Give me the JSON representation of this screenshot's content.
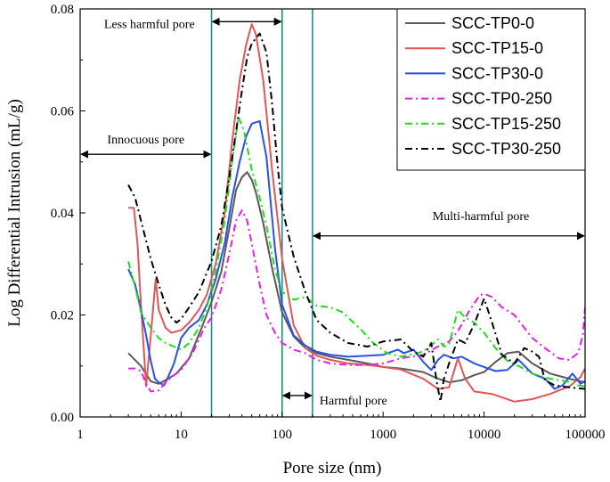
{
  "chart_data": {
    "type": "line",
    "xscale": "log",
    "xlabel": "Pore size (nm)",
    "ylabel": "Log Differential Intrusion (mL/g)",
    "xlim": [
      1,
      100000
    ],
    "ylim": [
      0,
      0.08
    ],
    "x_ticks": [
      1,
      10,
      100,
      1000,
      10000,
      100000
    ],
    "x_tick_labels": [
      "1",
      "10",
      "100",
      "1000",
      "10000",
      "100000"
    ],
    "y_ticks": [
      0,
      0.02,
      0.04,
      0.06,
      0.08
    ],
    "y_tick_labels": [
      "0.00",
      "0.02",
      "0.04",
      "0.06",
      "0.08"
    ],
    "boundaries": [
      20,
      100,
      200
    ],
    "annotations": [
      {
        "id": "innocuous",
        "text": "Innocuous pore",
        "from": 1,
        "to": 20,
        "y": 0.0515
      },
      {
        "id": "less-harmful",
        "text": "Less harmful pore",
        "from": 20,
        "to": 100,
        "y": 0.0775
      },
      {
        "id": "harmful",
        "text": "Harmful pore",
        "from": 100,
        "to": 200,
        "y": 0.0042
      },
      {
        "id": "multi-harmful",
        "text": "Multi-harmful pore",
        "from": 200,
        "to": 100000,
        "y": 0.0355
      }
    ],
    "series": [
      {
        "name": "SCC-TP0-0",
        "color": "#595959",
        "dash": "",
        "points": [
          [
            3,
            0.0125
          ],
          [
            4,
            0.01
          ],
          [
            5,
            0.007
          ],
          [
            6,
            0.0065
          ],
          [
            7,
            0.0072
          ],
          [
            9,
            0.0085
          ],
          [
            12,
            0.0115
          ],
          [
            16,
            0.0175
          ],
          [
            20,
            0.0225
          ],
          [
            25,
            0.0285
          ],
          [
            30,
            0.037
          ],
          [
            35,
            0.0445
          ],
          [
            40,
            0.047
          ],
          [
            45,
            0.048
          ],
          [
            50,
            0.0465
          ],
          [
            55,
            0.044
          ],
          [
            65,
            0.038
          ],
          [
            80,
            0.029
          ],
          [
            100,
            0.0205
          ],
          [
            130,
            0.0158
          ],
          [
            170,
            0.0135
          ],
          [
            220,
            0.0125
          ],
          [
            300,
            0.0118
          ],
          [
            450,
            0.0112
          ],
          [
            700,
            0.0105
          ],
          [
            1000,
            0.0098
          ],
          [
            1500,
            0.0095
          ],
          [
            2500,
            0.0088
          ],
          [
            3500,
            0.0075
          ],
          [
            4500,
            0.0068
          ],
          [
            6000,
            0.0072
          ],
          [
            8000,
            0.0082
          ],
          [
            10000,
            0.0088
          ],
          [
            13000,
            0.0108
          ],
          [
            17000,
            0.0125
          ],
          [
            22000,
            0.0128
          ],
          [
            30000,
            0.0105
          ],
          [
            45000,
            0.0085
          ],
          [
            70000,
            0.0075
          ],
          [
            100000,
            0.0068
          ]
        ]
      },
      {
        "name": "SCC-TP15-0",
        "color": "#e15759",
        "dash": "",
        "points": [
          [
            3,
            0.041
          ],
          [
            3.4,
            0.041
          ],
          [
            3.7,
            0.034
          ],
          [
            4,
            0.022
          ],
          [
            4.5,
            0.006
          ],
          [
            5,
            0.016
          ],
          [
            5.6,
            0.027
          ],
          [
            6,
            0.021
          ],
          [
            7,
            0.0175
          ],
          [
            8,
            0.0165
          ],
          [
            10,
            0.017
          ],
          [
            12,
            0.0185
          ],
          [
            15,
            0.021
          ],
          [
            18,
            0.024
          ],
          [
            22,
            0.03
          ],
          [
            27,
            0.04
          ],
          [
            32,
            0.054
          ],
          [
            38,
            0.066
          ],
          [
            44,
            0.073
          ],
          [
            50,
            0.077
          ],
          [
            55,
            0.075
          ],
          [
            65,
            0.066
          ],
          [
            80,
            0.048
          ],
          [
            100,
            0.031
          ],
          [
            130,
            0.018
          ],
          [
            170,
            0.0135
          ],
          [
            220,
            0.012
          ],
          [
            300,
            0.0112
          ],
          [
            450,
            0.0105
          ],
          [
            700,
            0.0102
          ],
          [
            1000,
            0.0098
          ],
          [
            1500,
            0.0093
          ],
          [
            2500,
            0.0075
          ],
          [
            3500,
            0.0055
          ],
          [
            4500,
            0.0058
          ],
          [
            5500,
            0.0115
          ],
          [
            6500,
            0.0075
          ],
          [
            8000,
            0.005
          ],
          [
            12000,
            0.0045
          ],
          [
            20000,
            0.003
          ],
          [
            30000,
            0.0035
          ],
          [
            45000,
            0.0045
          ],
          [
            70000,
            0.006
          ],
          [
            90000,
            0.0078
          ],
          [
            100000,
            0.0095
          ]
        ]
      },
      {
        "name": "SCC-TP30-0",
        "color": "#2b50e5",
        "dash": "",
        "points": [
          [
            3,
            0.029
          ],
          [
            3.5,
            0.026
          ],
          [
            4,
            0.021
          ],
          [
            4.5,
            0.016
          ],
          [
            5,
            0.011
          ],
          [
            5.5,
            0.0075
          ],
          [
            6,
            0.0068
          ],
          [
            6.8,
            0.0062
          ],
          [
            7.5,
            0.008
          ],
          [
            8.5,
            0.0105
          ],
          [
            10,
            0.0155
          ],
          [
            12,
            0.0175
          ],
          [
            15,
            0.019
          ],
          [
            18,
            0.022
          ],
          [
            22,
            0.027
          ],
          [
            27,
            0.034
          ],
          [
            32,
            0.043
          ],
          [
            38,
            0.05
          ],
          [
            44,
            0.055
          ],
          [
            50,
            0.0575
          ],
          [
            60,
            0.058
          ],
          [
            70,
            0.051
          ],
          [
            85,
            0.033
          ],
          [
            100,
            0.022
          ],
          [
            130,
            0.016
          ],
          [
            170,
            0.014
          ],
          [
            220,
            0.0128
          ],
          [
            300,
            0.0122
          ],
          [
            450,
            0.0118
          ],
          [
            700,
            0.012
          ],
          [
            1000,
            0.0122
          ],
          [
            1400,
            0.0132
          ],
          [
            1600,
            0.0125
          ],
          [
            2000,
            0.0132
          ],
          [
            2500,
            0.0108
          ],
          [
            3000,
            0.0092
          ],
          [
            3500,
            0.0112
          ],
          [
            4000,
            0.0122
          ],
          [
            5000,
            0.0115
          ],
          [
            6000,
            0.0118
          ],
          [
            8000,
            0.0105
          ],
          [
            10000,
            0.0098
          ],
          [
            13000,
            0.009
          ],
          [
            17000,
            0.0092
          ],
          [
            22000,
            0.0112
          ],
          [
            30000,
            0.0085
          ],
          [
            40000,
            0.0075
          ],
          [
            50000,
            0.0055
          ],
          [
            60000,
            0.0062
          ],
          [
            75000,
            0.0085
          ],
          [
            90000,
            0.0065
          ],
          [
            100000,
            0.007
          ]
        ]
      },
      {
        "name": "SCC-TP0-250",
        "color": "#e61fe6",
        "dash": "8 4 2 4",
        "points": [
          [
            3,
            0.0095
          ],
          [
            3.5,
            0.0095
          ],
          [
            4,
            0.009
          ],
          [
            4.5,
            0.0065
          ],
          [
            5,
            0.005
          ],
          [
            6,
            0.0052
          ],
          [
            7,
            0.0068
          ],
          [
            8.5,
            0.0082
          ],
          [
            10,
            0.0092
          ],
          [
            13,
            0.0125
          ],
          [
            17,
            0.0175
          ],
          [
            20,
            0.0195
          ],
          [
            25,
            0.025
          ],
          [
            30,
            0.032
          ],
          [
            35,
            0.0385
          ],
          [
            40,
            0.0405
          ],
          [
            45,
            0.0385
          ],
          [
            50,
            0.034
          ],
          [
            60,
            0.026
          ],
          [
            70,
            0.02
          ],
          [
            85,
            0.0165
          ],
          [
            100,
            0.0145
          ],
          [
            130,
            0.0132
          ],
          [
            170,
            0.0125
          ],
          [
            220,
            0.0112
          ],
          [
            300,
            0.0105
          ],
          [
            450,
            0.0102
          ],
          [
            700,
            0.0102
          ],
          [
            1000,
            0.0105
          ],
          [
            1500,
            0.0115
          ],
          [
            2500,
            0.0122
          ],
          [
            3500,
            0.0138
          ],
          [
            4500,
            0.0148
          ],
          [
            5500,
            0.0168
          ],
          [
            7000,
            0.0205
          ],
          [
            9000,
            0.0238
          ],
          [
            10000,
            0.0242
          ],
          [
            12000,
            0.0235
          ],
          [
            15000,
            0.0215
          ],
          [
            20000,
            0.02
          ],
          [
            25000,
            0.0175
          ],
          [
            30000,
            0.0155
          ],
          [
            40000,
            0.0135
          ],
          [
            55000,
            0.0115
          ],
          [
            70000,
            0.0112
          ],
          [
            85000,
            0.0125
          ],
          [
            95000,
            0.016
          ],
          [
            100000,
            0.0215
          ]
        ]
      },
      {
        "name": "SCC-TP15-250",
        "color": "#1fdc1f",
        "dash": "8 4 2 4",
        "points": [
          [
            3,
            0.0305
          ],
          [
            3.5,
            0.0255
          ],
          [
            4,
            0.0205
          ],
          [
            5,
            0.0175
          ],
          [
            6,
            0.0155
          ],
          [
            7,
            0.0145
          ],
          [
            8.5,
            0.0138
          ],
          [
            10,
            0.0132
          ],
          [
            12,
            0.0145
          ],
          [
            15,
            0.0175
          ],
          [
            18,
            0.0215
          ],
          [
            22,
            0.0285
          ],
          [
            27,
            0.0385
          ],
          [
            32,
            0.05
          ],
          [
            37,
            0.0588
          ],
          [
            42,
            0.056
          ],
          [
            50,
            0.0485
          ],
          [
            60,
            0.043
          ],
          [
            70,
            0.0375
          ],
          [
            85,
            0.029
          ],
          [
            100,
            0.0245
          ],
          [
            130,
            0.023
          ],
          [
            170,
            0.0235
          ],
          [
            220,
            0.0218
          ],
          [
            300,
            0.0215
          ],
          [
            400,
            0.0205
          ],
          [
            450,
            0.0195
          ],
          [
            600,
            0.0172
          ],
          [
            800,
            0.0145
          ],
          [
            1100,
            0.0125
          ],
          [
            1500,
            0.0118
          ],
          [
            2500,
            0.0128
          ],
          [
            3500,
            0.0152
          ],
          [
            4000,
            0.0138
          ],
          [
            4500,
            0.0142
          ],
          [
            5500,
            0.021
          ],
          [
            6500,
            0.0195
          ],
          [
            8000,
            0.0185
          ],
          [
            10000,
            0.0165
          ],
          [
            13000,
            0.0135
          ],
          [
            17000,
            0.011
          ],
          [
            22000,
            0.01
          ],
          [
            30000,
            0.0085
          ],
          [
            45000,
            0.0075
          ],
          [
            65000,
            0.007
          ],
          [
            85000,
            0.0062
          ],
          [
            100000,
            0.006
          ]
        ]
      },
      {
        "name": "SCC-TP30-250",
        "color": "#000000",
        "dash": "8 4 2 4",
        "points": [
          [
            3,
            0.0455
          ],
          [
            3.5,
            0.043
          ],
          [
            4,
            0.0385
          ],
          [
            5,
            0.031
          ],
          [
            6,
            0.026
          ],
          [
            7,
            0.022
          ],
          [
            8,
            0.0195
          ],
          [
            9,
            0.0185
          ],
          [
            10,
            0.0192
          ],
          [
            12,
            0.0215
          ],
          [
            15,
            0.0245
          ],
          [
            20,
            0.0305
          ],
          [
            25,
            0.0375
          ],
          [
            30,
            0.047
          ],
          [
            35,
            0.056
          ],
          [
            40,
            0.064
          ],
          [
            45,
            0.0705
          ],
          [
            50,
            0.0732
          ],
          [
            60,
            0.0752
          ],
          [
            70,
            0.0715
          ],
          [
            80,
            0.061
          ],
          [
            90,
            0.0495
          ],
          [
            100,
            0.041
          ],
          [
            130,
            0.0315
          ],
          [
            170,
            0.0245
          ],
          [
            220,
            0.019
          ],
          [
            300,
            0.0165
          ],
          [
            450,
            0.0145
          ],
          [
            700,
            0.0138
          ],
          [
            1000,
            0.0148
          ],
          [
            1500,
            0.0152
          ],
          [
            2000,
            0.0128
          ],
          [
            2500,
            0.0118
          ],
          [
            3000,
            0.0145
          ],
          [
            3400,
            0.0068
          ],
          [
            3700,
            0.003
          ],
          [
            4000,
            0.0075
          ],
          [
            4500,
            0.0105
          ],
          [
            5500,
            0.0152
          ],
          [
            6500,
            0.0145
          ],
          [
            8000,
            0.0182
          ],
          [
            10000,
            0.0232
          ],
          [
            12000,
            0.0185
          ],
          [
            15000,
            0.0122
          ],
          [
            20000,
            0.0105
          ],
          [
            25000,
            0.0135
          ],
          [
            30000,
            0.0128
          ],
          [
            35000,
            0.0118
          ],
          [
            40000,
            0.0072
          ],
          [
            50000,
            0.0062
          ],
          [
            70000,
            0.0058
          ],
          [
            100000,
            0.0055
          ]
        ]
      }
    ]
  }
}
